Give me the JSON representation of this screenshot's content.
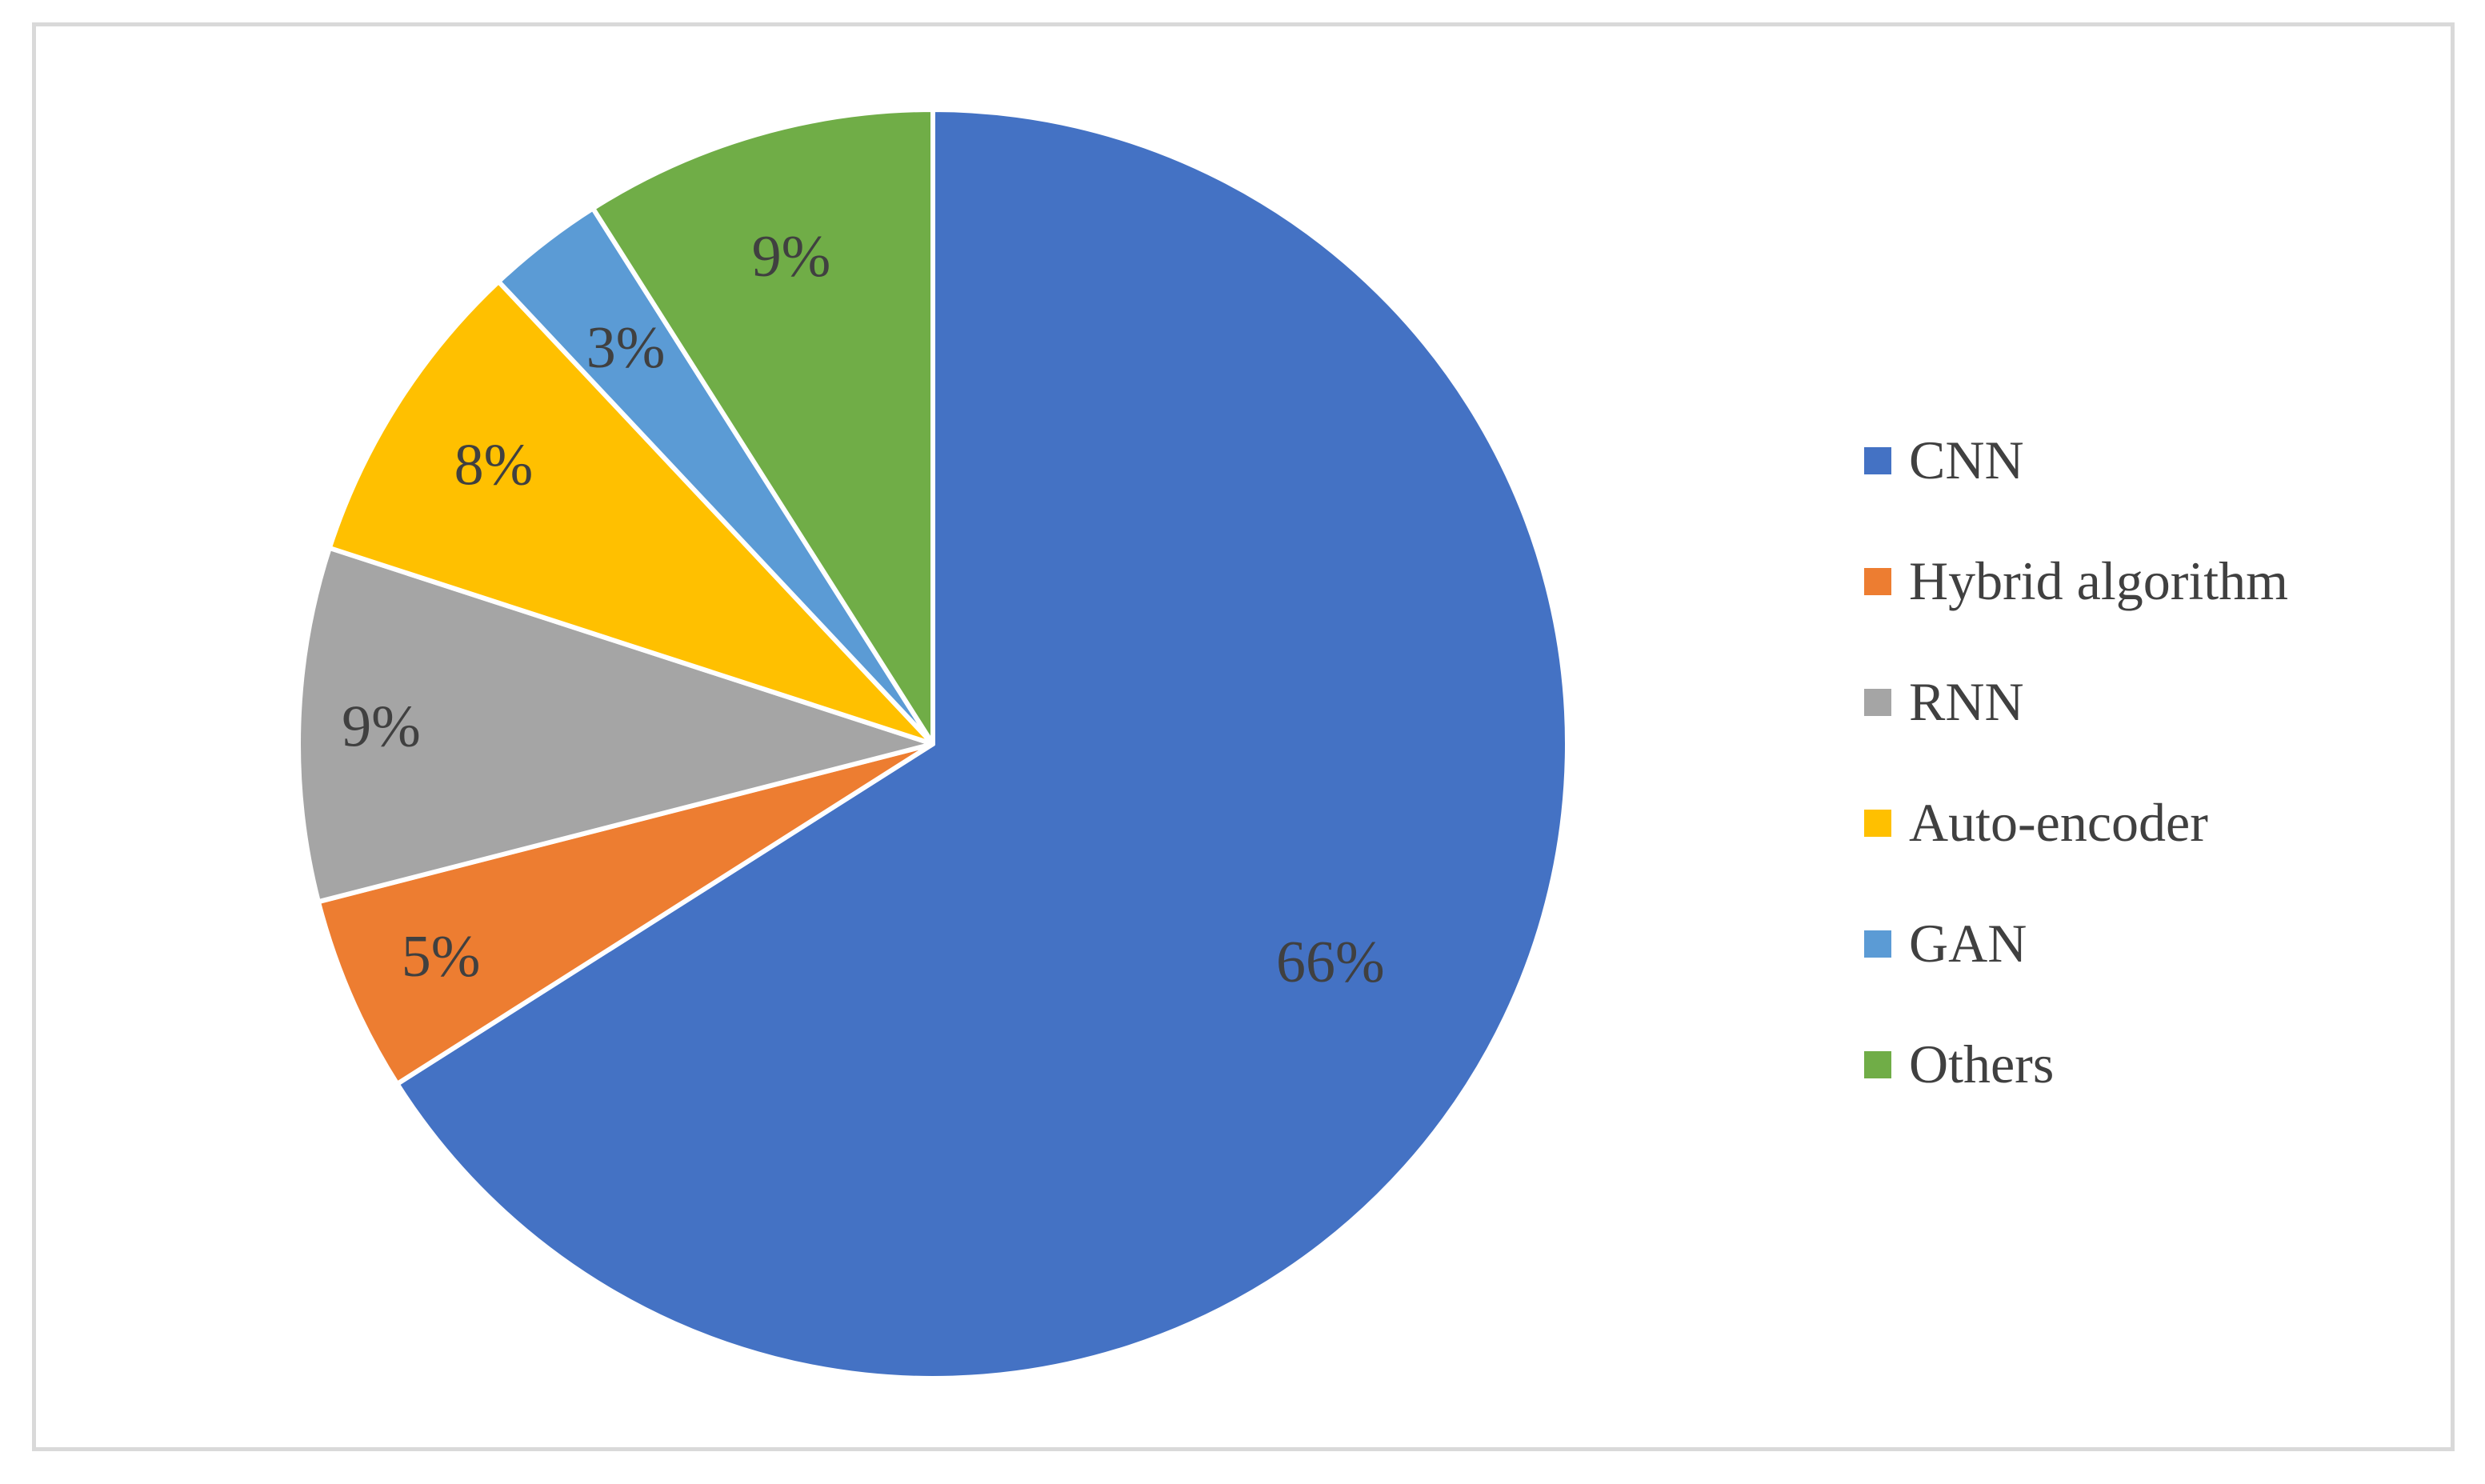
{
  "chart_data": {
    "type": "pie",
    "categories": [
      "CNN",
      "Hybrid algorithm",
      "RNN",
      "Auto-encoder",
      "GAN",
      "Others"
    ],
    "values": [
      66,
      5,
      9,
      8,
      3,
      9
    ],
    "data_labels": [
      "66%",
      "5%",
      "9%",
      "8%",
      "3%",
      "9%"
    ],
    "colors": [
      "#4472C4",
      "#ED7D31",
      "#A5A5A5",
      "#FFC000",
      "#5B9BD5",
      "#70AD47"
    ],
    "start_angle_deg": 0,
    "direction": "clockwise",
    "legend_position": "right",
    "title": ""
  }
}
